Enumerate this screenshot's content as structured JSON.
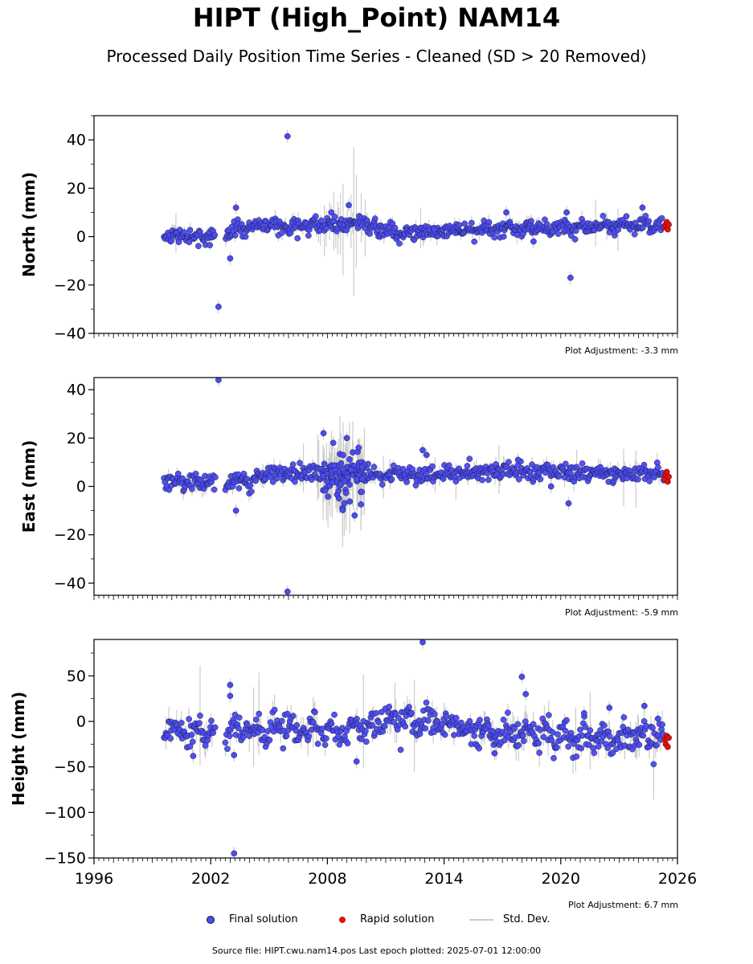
{
  "title": "HIPT (High_Point) NAM14",
  "subtitle": "Processed Daily Position Time Series - Cleaned (SD > 20 Removed)",
  "colors": {
    "final": "#4b4bf0",
    "final_edge": "#1a1a40",
    "rapid": "#e01010",
    "std": "#cccccc"
  },
  "legend": {
    "final_label": "Final solution",
    "rapid_label": "Rapid solution",
    "std_label": "Std. Dev."
  },
  "footer": "Source file: HIPT.cwu.nam14.pos  Last epoch plotted: 2025-07-01 12:00:00",
  "chart_data": [
    {
      "type": "scatter",
      "ylabel": "North (mm)",
      "xlim": [
        1996,
        2026
      ],
      "ylim": [
        -40,
        50
      ],
      "yticks": [
        "40",
        "20",
        "0",
        "−20",
        "−40"
      ],
      "ytick_values": [
        40,
        20,
        0,
        -20,
        -40
      ],
      "adjustment": "Plot Adjustment: -3.3 mm",
      "trend": [
        [
          1999.6,
          0
        ],
        [
          2002.2,
          0
        ],
        [
          2002.8,
          1
        ],
        [
          2004.3,
          4
        ],
        [
          2008.0,
          5
        ],
        [
          2009.5,
          6
        ],
        [
          2011.0,
          2
        ],
        [
          2013.0,
          2
        ],
        [
          2016.0,
          3
        ],
        [
          2020.0,
          4
        ],
        [
          2025.5,
          5
        ]
      ],
      "scatter_sd": 1.6,
      "outliers": [
        [
          2002.4,
          -29
        ],
        [
          2003.0,
          -9
        ],
        [
          2003.3,
          12
        ],
        [
          2005.95,
          41.5
        ],
        [
          2008.2,
          10
        ],
        [
          2009.1,
          13
        ],
        [
          2013.5,
          3
        ],
        [
          2017.2,
          10
        ],
        [
          2018.6,
          -2
        ],
        [
          2020.3,
          10
        ],
        [
          2020.5,
          -17
        ],
        [
          2024.2,
          12
        ]
      ],
      "rapid": [
        [
          2025.35,
          4
        ],
        [
          2025.4,
          5
        ],
        [
          2025.45,
          6
        ],
        [
          2025.5,
          3
        ],
        [
          2025.55,
          5
        ]
      ]
    },
    {
      "type": "scatter",
      "ylabel": "East (mm)",
      "xlim": [
        1996,
        2026
      ],
      "ylim": [
        -45,
        45
      ],
      "yticks": [
        "40",
        "20",
        "0",
        "−20",
        "−40"
      ],
      "ytick_values": [
        40,
        20,
        0,
        -20,
        -40
      ],
      "adjustment": "Plot Adjustment: -5.9 mm",
      "trend": [
        [
          1999.6,
          2
        ],
        [
          2002.2,
          2
        ],
        [
          2002.8,
          1
        ],
        [
          2005.0,
          5
        ],
        [
          2008.0,
          6
        ],
        [
          2010.0,
          5
        ],
        [
          2013.0,
          5
        ],
        [
          2016.0,
          6
        ],
        [
          2020.0,
          6
        ],
        [
          2025.5,
          5
        ]
      ],
      "scatter_sd": 1.8,
      "outliers": [
        [
          2002.4,
          44
        ],
        [
          2003.3,
          -10
        ],
        [
          2005.95,
          -43.5
        ],
        [
          2007.8,
          22
        ],
        [
          2008.3,
          18
        ],
        [
          2008.6,
          -5
        ],
        [
          2009.0,
          20
        ],
        [
          2009.4,
          -12
        ],
        [
          2009.6,
          16
        ],
        [
          2012.9,
          15
        ],
        [
          2013.1,
          13
        ],
        [
          2017.8,
          11
        ],
        [
          2019.5,
          0
        ],
        [
          2020.4,
          -7
        ]
      ],
      "rapid": [
        [
          2025.35,
          3
        ],
        [
          2025.4,
          5
        ],
        [
          2025.45,
          6
        ],
        [
          2025.5,
          2
        ],
        [
          2025.55,
          4
        ]
      ]
    },
    {
      "type": "scatter",
      "ylabel": "Height (mm)",
      "xlim": [
        1996,
        2026
      ],
      "ylim": [
        -150,
        90
      ],
      "yticks": [
        "50",
        "0",
        "−50",
        "−100",
        "−150"
      ],
      "ytick_values": [
        50,
        0,
        -50,
        -100,
        -150
      ],
      "xticks": [
        "1996",
        "2002",
        "2008",
        "2014",
        "2020",
        "2026"
      ],
      "xtick_values": [
        1996,
        2002,
        2008,
        2014,
        2020,
        2026
      ],
      "adjustment": "Plot Adjustment: 6.7 mm",
      "trend": [
        [
          1999.6,
          -5
        ],
        [
          2001.0,
          -10
        ],
        [
          2003.0,
          -12
        ],
        [
          2006.0,
          -8
        ],
        [
          2009.0,
          -12
        ],
        [
          2010.5,
          0
        ],
        [
          2012.5,
          2
        ],
        [
          2015.0,
          -8
        ],
        [
          2018.0,
          -14
        ],
        [
          2020.0,
          -18
        ],
        [
          2025.5,
          -18
        ]
      ],
      "scatter_sd": 8,
      "outliers": [
        [
          2003.0,
          40
        ],
        [
          2003.0,
          28
        ],
        [
          2003.2,
          -145
        ],
        [
          2003.2,
          -37
        ],
        [
          2001.1,
          -38
        ],
        [
          2009.5,
          -44
        ],
        [
          2012.9,
          87
        ],
        [
          2016.6,
          -35
        ],
        [
          2018.0,
          49
        ],
        [
          2018.2,
          30
        ],
        [
          2021.2,
          9
        ],
        [
          2022.5,
          15
        ],
        [
          2024.3,
          17
        ],
        [
          2025.0,
          3
        ]
      ],
      "rapid": [
        [
          2025.35,
          -20
        ],
        [
          2025.4,
          -25
        ],
        [
          2025.45,
          -16
        ],
        [
          2025.5,
          -28
        ],
        [
          2025.55,
          -18
        ]
      ]
    }
  ]
}
